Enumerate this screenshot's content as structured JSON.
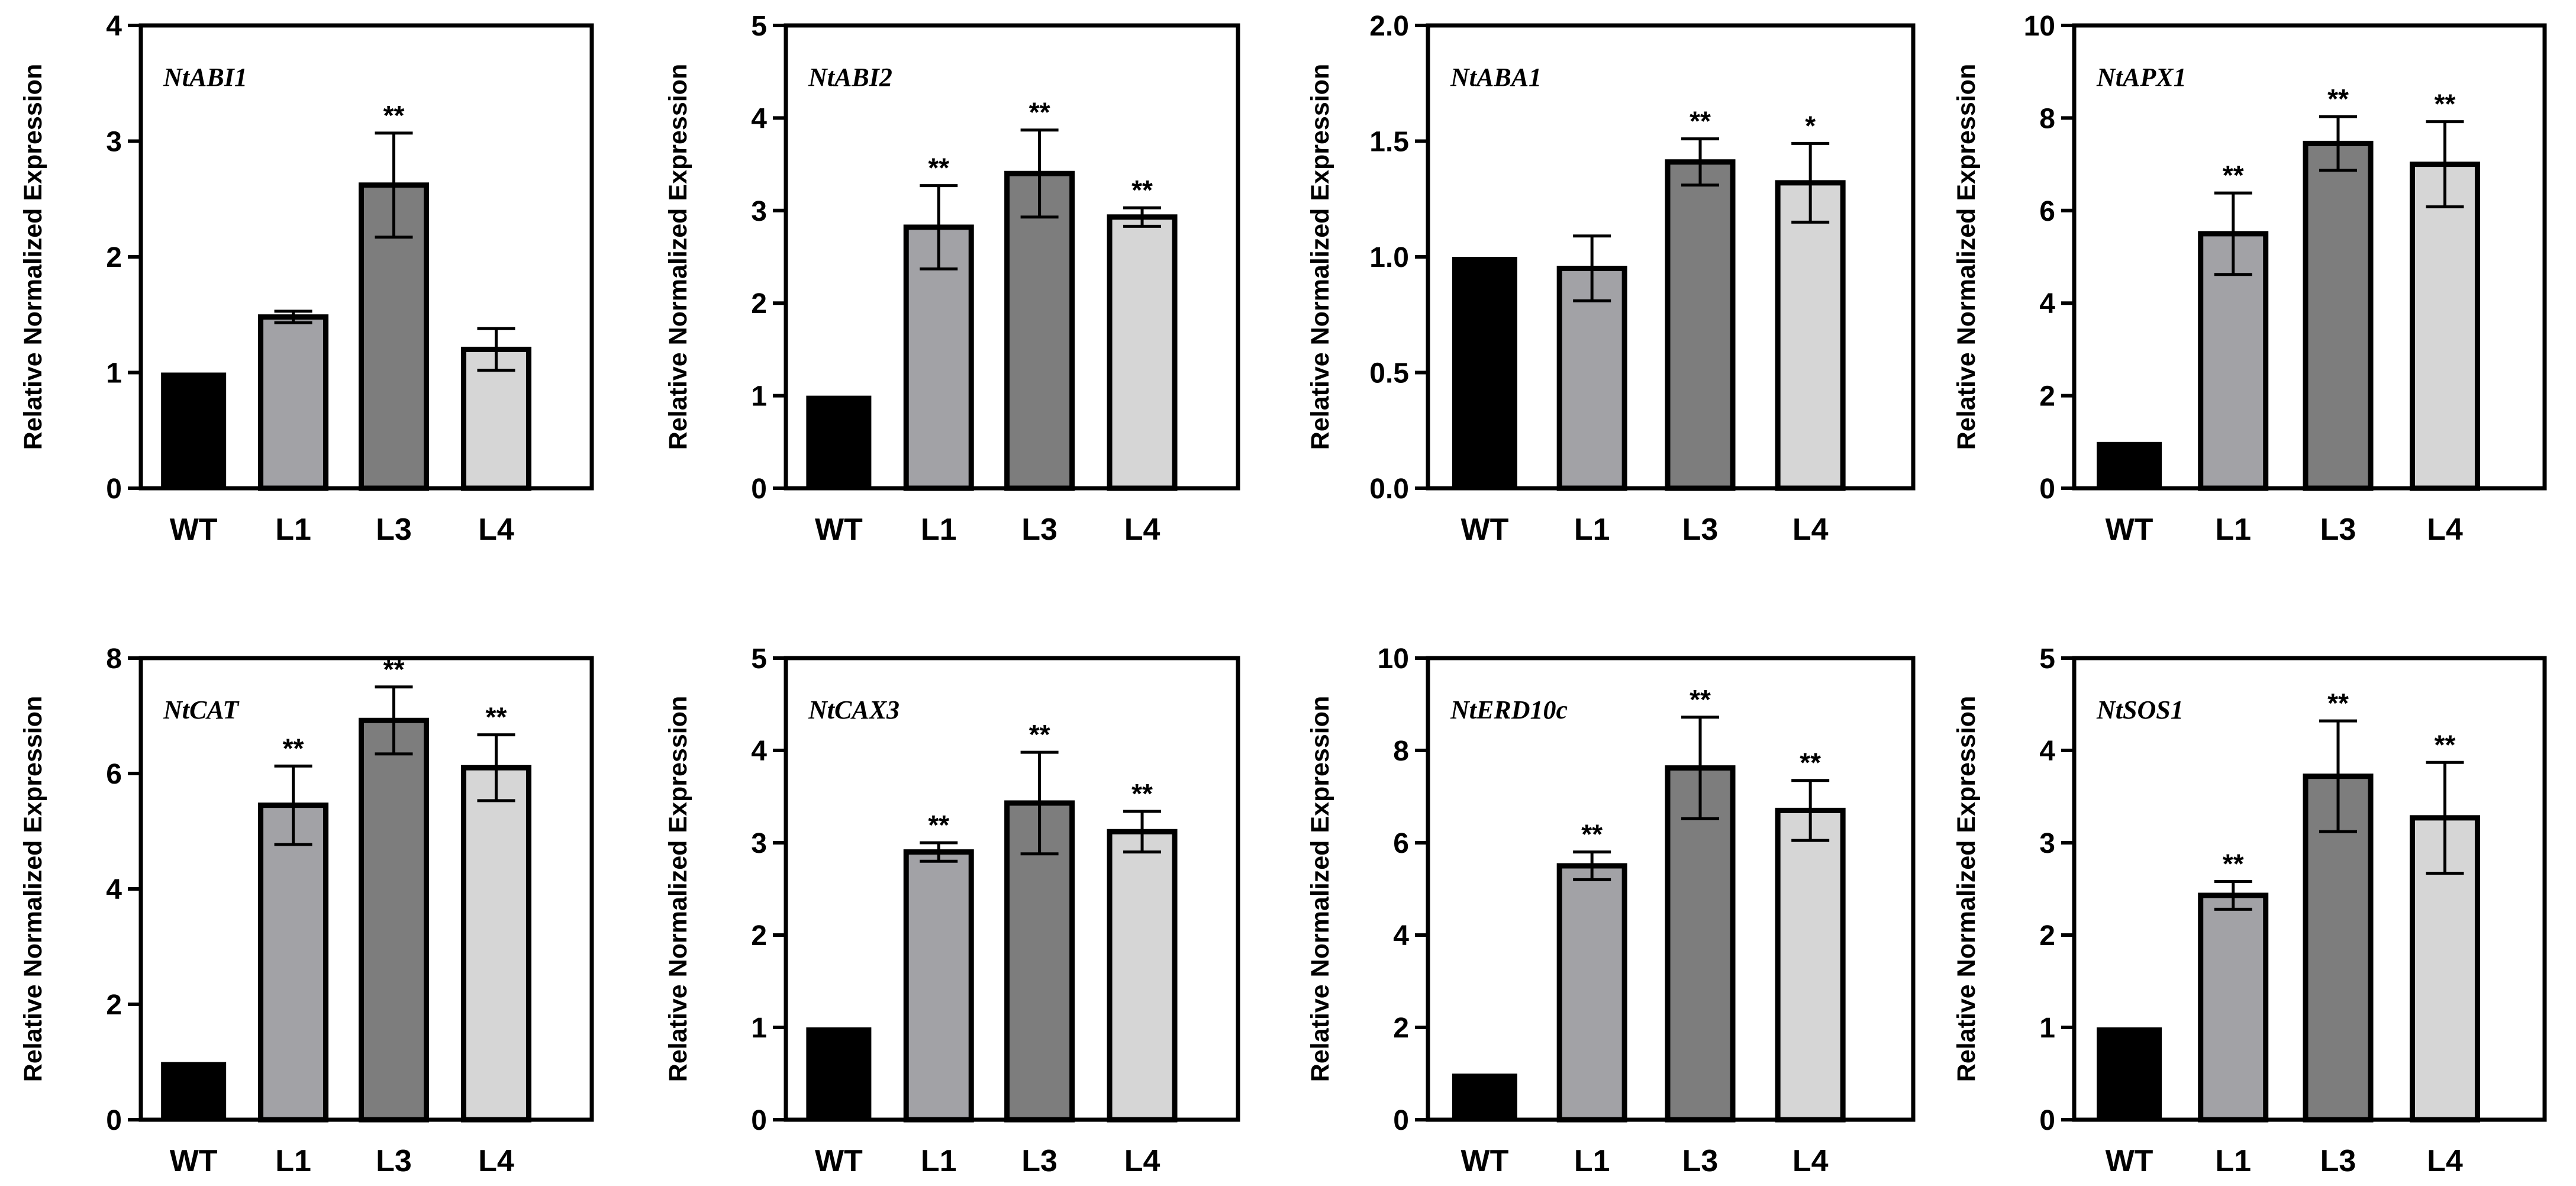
{
  "figure": {
    "categories": [
      "WT",
      "L1",
      "L3",
      "L4"
    ],
    "bar_colors": [
      "#000000",
      "#a2a2a6",
      "#7d7d7d",
      "#d6d6d6"
    ],
    "ylabel": "Relative Normalized Expression"
  },
  "chart_data": [
    {
      "type": "bar",
      "title": "NtABI1",
      "xlabel": "",
      "ylabel": "Relative Normalized Expression",
      "categories": [
        "WT",
        "L1",
        "L3",
        "L4"
      ],
      "values": [
        1.0,
        1.48,
        2.62,
        1.2
      ],
      "errors": [
        0,
        0.05,
        0.45,
        0.18
      ],
      "significance": [
        "",
        "",
        "**",
        ""
      ],
      "ylim": [
        0,
        4
      ],
      "yticks": [
        "0",
        "1",
        "2",
        "3",
        "4"
      ]
    },
    {
      "type": "bar",
      "title": "NtABI2",
      "xlabel": "",
      "ylabel": "Relative Normalized Expression",
      "categories": [
        "WT",
        "L1",
        "L3",
        "L4"
      ],
      "values": [
        1.0,
        2.82,
        3.4,
        2.93
      ],
      "errors": [
        0,
        0.45,
        0.47,
        0.1
      ],
      "significance": [
        "",
        "**",
        "**",
        "**"
      ],
      "ylim": [
        0,
        5
      ],
      "yticks": [
        "0",
        "1",
        "2",
        "3",
        "4",
        "5"
      ]
    },
    {
      "type": "bar",
      "title": "NtABA1",
      "xlabel": "",
      "ylabel": "Relative Normalized Expression",
      "categories": [
        "WT",
        "L1",
        "L3",
        "L4"
      ],
      "values": [
        1.0,
        0.95,
        1.41,
        1.32
      ],
      "errors": [
        0,
        0.14,
        0.1,
        0.17
      ],
      "significance": [
        "",
        "",
        "**",
        "*"
      ],
      "ylim": [
        0,
        2
      ],
      "yticks": [
        "0.0",
        "0.5",
        "1.0",
        "1.5",
        "2.0"
      ]
    },
    {
      "type": "bar",
      "title": "NtAPX1",
      "xlabel": "",
      "ylabel": "Relative Normalized Expression",
      "categories": [
        "WT",
        "L1",
        "L3",
        "L4"
      ],
      "values": [
        1.0,
        5.5,
        7.45,
        7.0
      ],
      "errors": [
        0,
        0.88,
        0.58,
        0.92
      ],
      "significance": [
        "",
        "**",
        "**",
        "**"
      ],
      "ylim": [
        0,
        10
      ],
      "yticks": [
        "0",
        "2",
        "4",
        "6",
        "8",
        "10"
      ]
    },
    {
      "type": "bar",
      "title": "NtCAT",
      "xlabel": "",
      "ylabel": "Relative Normalized Expression",
      "categories": [
        "WT",
        "L1",
        "L3",
        "L4"
      ],
      "values": [
        1.0,
        5.45,
        6.92,
        6.1
      ],
      "errors": [
        0,
        0.68,
        0.58,
        0.57
      ],
      "significance": [
        "",
        "**",
        "**",
        "**"
      ],
      "ylim": [
        0,
        8
      ],
      "yticks": [
        "0",
        "2",
        "4",
        "6",
        "8"
      ]
    },
    {
      "type": "bar",
      "title": "NtCAX3",
      "xlabel": "",
      "ylabel": "Relative Normalized Expression",
      "categories": [
        "WT",
        "L1",
        "L3",
        "L4"
      ],
      "values": [
        1.0,
        2.9,
        3.43,
        3.12
      ],
      "errors": [
        0,
        0.1,
        0.55,
        0.22
      ],
      "significance": [
        "",
        "**",
        "**",
        "**"
      ],
      "ylim": [
        0,
        5
      ],
      "yticks": [
        "0",
        "1",
        "2",
        "3",
        "4",
        "5"
      ]
    },
    {
      "type": "bar",
      "title": "NtERD10c",
      "xlabel": "",
      "ylabel": "Relative Normalized Expression",
      "categories": [
        "WT",
        "L1",
        "L3",
        "L4"
      ],
      "values": [
        1.0,
        5.5,
        7.62,
        6.7
      ],
      "errors": [
        0,
        0.3,
        1.1,
        0.65
      ],
      "significance": [
        "",
        "**",
        "**",
        "**"
      ],
      "ylim": [
        0,
        10
      ],
      "yticks": [
        "0",
        "2",
        "4",
        "6",
        "8",
        "10"
      ]
    },
    {
      "type": "bar",
      "title": "NtSOS1",
      "xlabel": "",
      "ylabel": "Relative Normalized Expression",
      "categories": [
        "WT",
        "L1",
        "L3",
        "L4"
      ],
      "values": [
        1.0,
        2.43,
        3.72,
        3.27
      ],
      "errors": [
        0,
        0.15,
        0.6,
        0.6
      ],
      "significance": [
        "",
        "**",
        "**",
        "**"
      ],
      "ylim": [
        0,
        5
      ],
      "yticks": [
        "0",
        "1",
        "2",
        "3",
        "4",
        "5"
      ]
    }
  ]
}
